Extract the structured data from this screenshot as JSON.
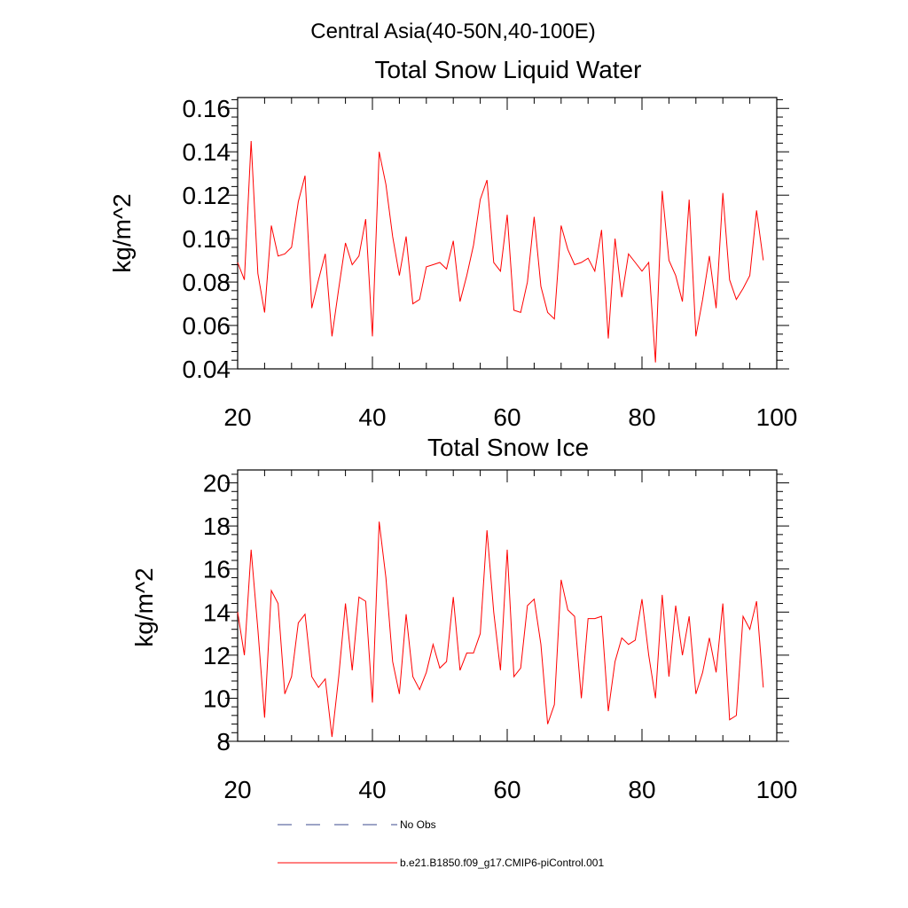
{
  "figure": {
    "main_title": "Central Asia(40-50N,40-100E)"
  },
  "legend": {
    "items": [
      {
        "label": "No Obs",
        "color": "#3b4a8c",
        "style": "dashed"
      },
      {
        "label": "b.e21.B1850.f09_g17.CMIP6-piControl.001",
        "color": "#ff0000",
        "style": "solid"
      }
    ]
  },
  "chart_data": [
    {
      "type": "line",
      "title": "Total Snow Liquid Water",
      "xlabel": "",
      "ylabel": "kg/m^2",
      "xlim": [
        20,
        100
      ],
      "ylim": [
        0.04,
        0.165
      ],
      "xticks": [
        20,
        40,
        60,
        80,
        100
      ],
      "xtick_labels": [
        "20",
        "40",
        "60",
        "80",
        "100"
      ],
      "yticks": [
        0.04,
        0.06,
        0.08,
        0.1,
        0.12,
        0.14,
        0.16
      ],
      "ytick_labels": [
        "0.04",
        "0.06",
        "0.08",
        "0.10",
        "0.12",
        "0.14",
        "0.16"
      ],
      "grid": false,
      "series": [
        {
          "name": "b.e21.B1850.f09_g17.CMIP6-piControl.001",
          "color": "#ff0000",
          "x": [
            20,
            21,
            22,
            23,
            24,
            25,
            26,
            27,
            28,
            29,
            30,
            31,
            32,
            33,
            34,
            35,
            36,
            37,
            38,
            39,
            40,
            41,
            42,
            43,
            44,
            45,
            46,
            47,
            48,
            49,
            50,
            51,
            52,
            53,
            54,
            55,
            56,
            57,
            58,
            59,
            60,
            61,
            62,
            63,
            64,
            65,
            66,
            67,
            68,
            69,
            70,
            71,
            72,
            73,
            74,
            75,
            76,
            77,
            78,
            79,
            80,
            81,
            82,
            83,
            84,
            85,
            86,
            87,
            88,
            89,
            90,
            91,
            92,
            93,
            94,
            95,
            96,
            97,
            98
          ],
          "values": [
            0.089,
            0.081,
            0.145,
            0.084,
            0.066,
            0.106,
            0.092,
            0.093,
            0.096,
            0.117,
            0.129,
            0.068,
            0.081,
            0.093,
            0.055,
            0.077,
            0.098,
            0.088,
            0.092,
            0.109,
            0.055,
            0.14,
            0.125,
            0.101,
            0.083,
            0.101,
            0.07,
            0.072,
            0.087,
            0.088,
            0.089,
            0.086,
            0.099,
            0.071,
            0.083,
            0.097,
            0.118,
            0.127,
            0.089,
            0.085,
            0.111,
            0.067,
            0.066,
            0.08,
            0.11,
            0.078,
            0.066,
            0.063,
            0.106,
            0.095,
            0.088,
            0.089,
            0.091,
            0.085,
            0.104,
            0.054,
            0.1,
            0.073,
            0.093,
            0.089,
            0.085,
            0.089,
            0.043,
            0.122,
            0.09,
            0.083,
            0.071,
            0.118,
            0.055,
            0.072,
            0.092,
            0.068,
            0.121,
            0.081,
            0.072,
            0.077,
            0.083,
            0.113,
            0.09
          ]
        }
      ]
    },
    {
      "type": "line",
      "title": "Total Snow Ice",
      "xlabel": "",
      "ylabel": "kg/m^2",
      "xlim": [
        20,
        100
      ],
      "ylim": [
        8,
        20.6
      ],
      "xticks": [
        20,
        40,
        60,
        80,
        100
      ],
      "xtick_labels": [
        "20",
        "40",
        "60",
        "80",
        "100"
      ],
      "yticks": [
        8,
        10,
        12,
        14,
        16,
        18,
        20
      ],
      "ytick_labels": [
        "8",
        "10",
        "12",
        "14",
        "16",
        "18",
        "20"
      ],
      "grid": false,
      "series": [
        {
          "name": "b.e21.B1850.f09_g17.CMIP6-piControl.001",
          "color": "#ff0000",
          "x": [
            20,
            21,
            22,
            23,
            24,
            25,
            26,
            27,
            28,
            29,
            30,
            31,
            32,
            33,
            34,
            35,
            36,
            37,
            38,
            39,
            40,
            41,
            42,
            43,
            44,
            45,
            46,
            47,
            48,
            49,
            50,
            51,
            52,
            53,
            54,
            55,
            56,
            57,
            58,
            59,
            60,
            61,
            62,
            63,
            64,
            65,
            66,
            67,
            68,
            69,
            70,
            71,
            72,
            73,
            74,
            75,
            76,
            77,
            78,
            79,
            80,
            81,
            82,
            83,
            84,
            85,
            86,
            87,
            88,
            89,
            90,
            91,
            92,
            93,
            94,
            95,
            96,
            97,
            98
          ],
          "values": [
            14.0,
            12.0,
            16.9,
            13.2,
            9.1,
            15.0,
            14.4,
            10.2,
            11.0,
            13.5,
            13.9,
            11.0,
            10.5,
            10.9,
            8.2,
            11.0,
            14.4,
            11.3,
            14.7,
            14.5,
            9.8,
            18.2,
            15.6,
            11.7,
            10.2,
            13.9,
            11.0,
            10.4,
            11.2,
            12.5,
            11.4,
            11.7,
            14.7,
            11.3,
            12.1,
            12.1,
            13.0,
            17.8,
            14.0,
            11.3,
            16.9,
            11.0,
            11.4,
            14.3,
            14.6,
            12.5,
            8.8,
            9.7,
            15.5,
            14.1,
            13.8,
            10.0,
            13.7,
            13.7,
            13.8,
            9.4,
            11.7,
            12.8,
            12.5,
            12.7,
            14.6,
            12.0,
            10.0,
            14.8,
            11.0,
            14.3,
            12.0,
            13.8,
            10.2,
            11.2,
            12.8,
            11.2,
            14.4,
            9.0,
            9.2,
            13.8,
            13.2,
            14.5,
            10.5
          ]
        }
      ]
    }
  ]
}
